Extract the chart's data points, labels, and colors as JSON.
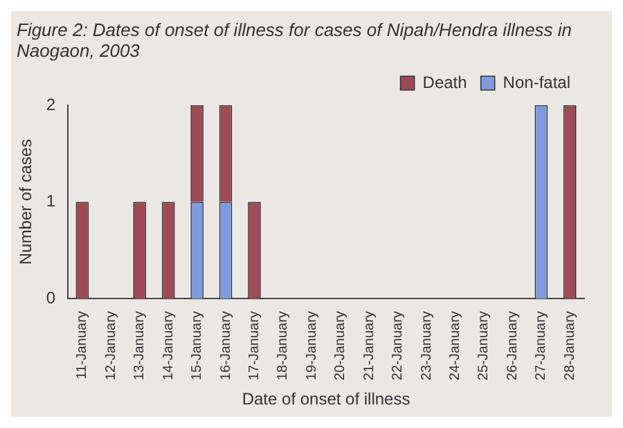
{
  "chart_data": {
    "type": "bar",
    "title": "Figure 2:  Dates of onset of illness for cases of Nipah/Hendra illness in Naogaon, 2003",
    "xlabel": "Date of onset of illness",
    "ylabel": "Number of cases",
    "categories": [
      "11-January",
      "12-January",
      "13-January",
      "14-January",
      "15-January",
      "16-January",
      "17-January",
      "18-January",
      "19-January",
      "20-January",
      "21-January",
      "22-January",
      "23-January",
      "24-January",
      "25-January",
      "26-January",
      "27-January",
      "28-January"
    ],
    "series": [
      {
        "name": "Non-fatal",
        "color": "#7f9be0",
        "values": [
          0,
          0,
          0,
          0,
          1,
          1,
          0,
          0,
          0,
          0,
          0,
          0,
          0,
          0,
          0,
          0,
          2,
          0
        ]
      },
      {
        "name": "Death",
        "color": "#9e4a58",
        "values": [
          1,
          0,
          1,
          1,
          1,
          1,
          1,
          0,
          0,
          0,
          0,
          0,
          0,
          0,
          0,
          0,
          0,
          2
        ]
      }
    ],
    "stacked": true,
    "ylim": [
      0,
      2
    ],
    "yticks": [
      0,
      1,
      2
    ],
    "grid": false,
    "legend": "top right"
  }
}
